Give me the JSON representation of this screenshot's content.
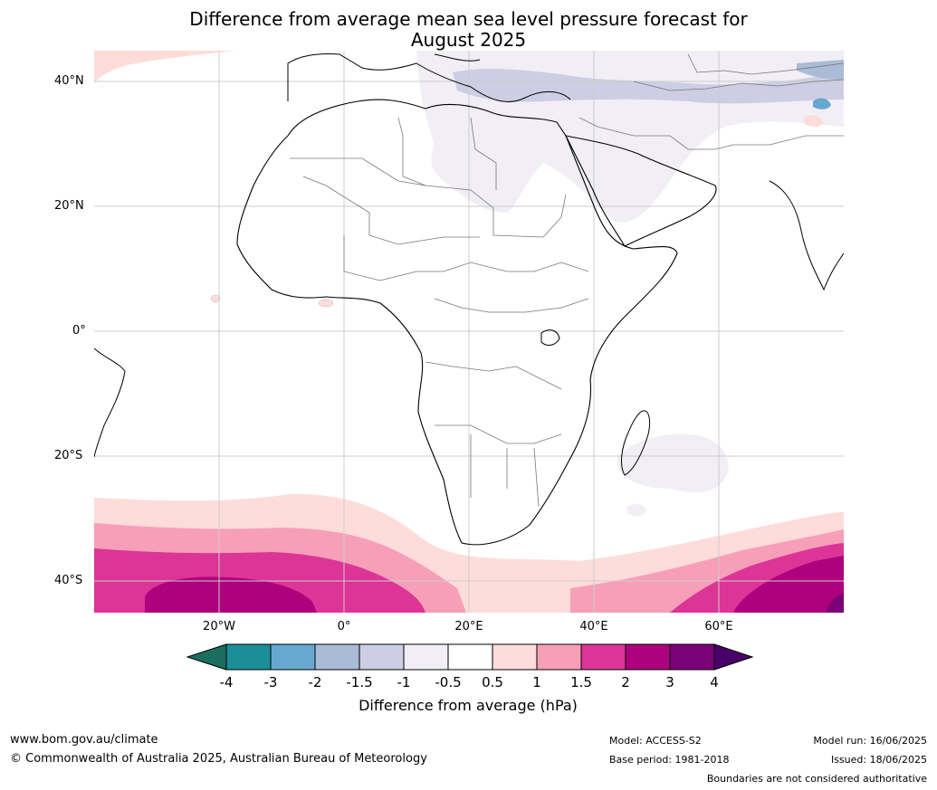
{
  "title": {
    "line1": "Difference from average mean sea level pressure forecast for",
    "line2": "August 2025"
  },
  "map": {
    "lat_ticks": [
      "40°N",
      "20°N",
      "0°",
      "20°S",
      "40°S"
    ],
    "lon_ticks": [
      "20°W",
      "0°",
      "20°E",
      "40°E",
      "60°E"
    ],
    "extent": {
      "lon": [
        -40,
        80
      ],
      "lat": [
        -45,
        45
      ]
    },
    "graticule_step_degrees": 20
  },
  "colorbar": {
    "title": "Difference from average (hPa)",
    "labels": [
      "-4",
      "-3",
      "-2",
      "-1.5",
      "-1",
      "-0.5",
      "0.5",
      "1",
      "1.5",
      "2",
      "3",
      "4"
    ],
    "colors": [
      "#1a6e5e",
      "#1a8f98",
      "#66a8d0",
      "#a9bbd6",
      "#cdcde3",
      "#f1eef5",
      "#ffffff",
      "#fddcda",
      "#f79fb8",
      "#dd3497",
      "#ae017e",
      "#7a0177",
      "#49006a"
    ]
  },
  "footer": {
    "website": "www.bom.gov.au/climate",
    "copyright": "© Commonwealth of Australia 2025, Australian Bureau of Meteorology",
    "model": "Model: ACCESS-S2",
    "base_period": "Base period: 1981-2018",
    "model_run": "Model run: 16/06/2025",
    "issued": "Issued: 18/06/2025",
    "disclaimer": "Boundaries are not considered authoritative"
  }
}
